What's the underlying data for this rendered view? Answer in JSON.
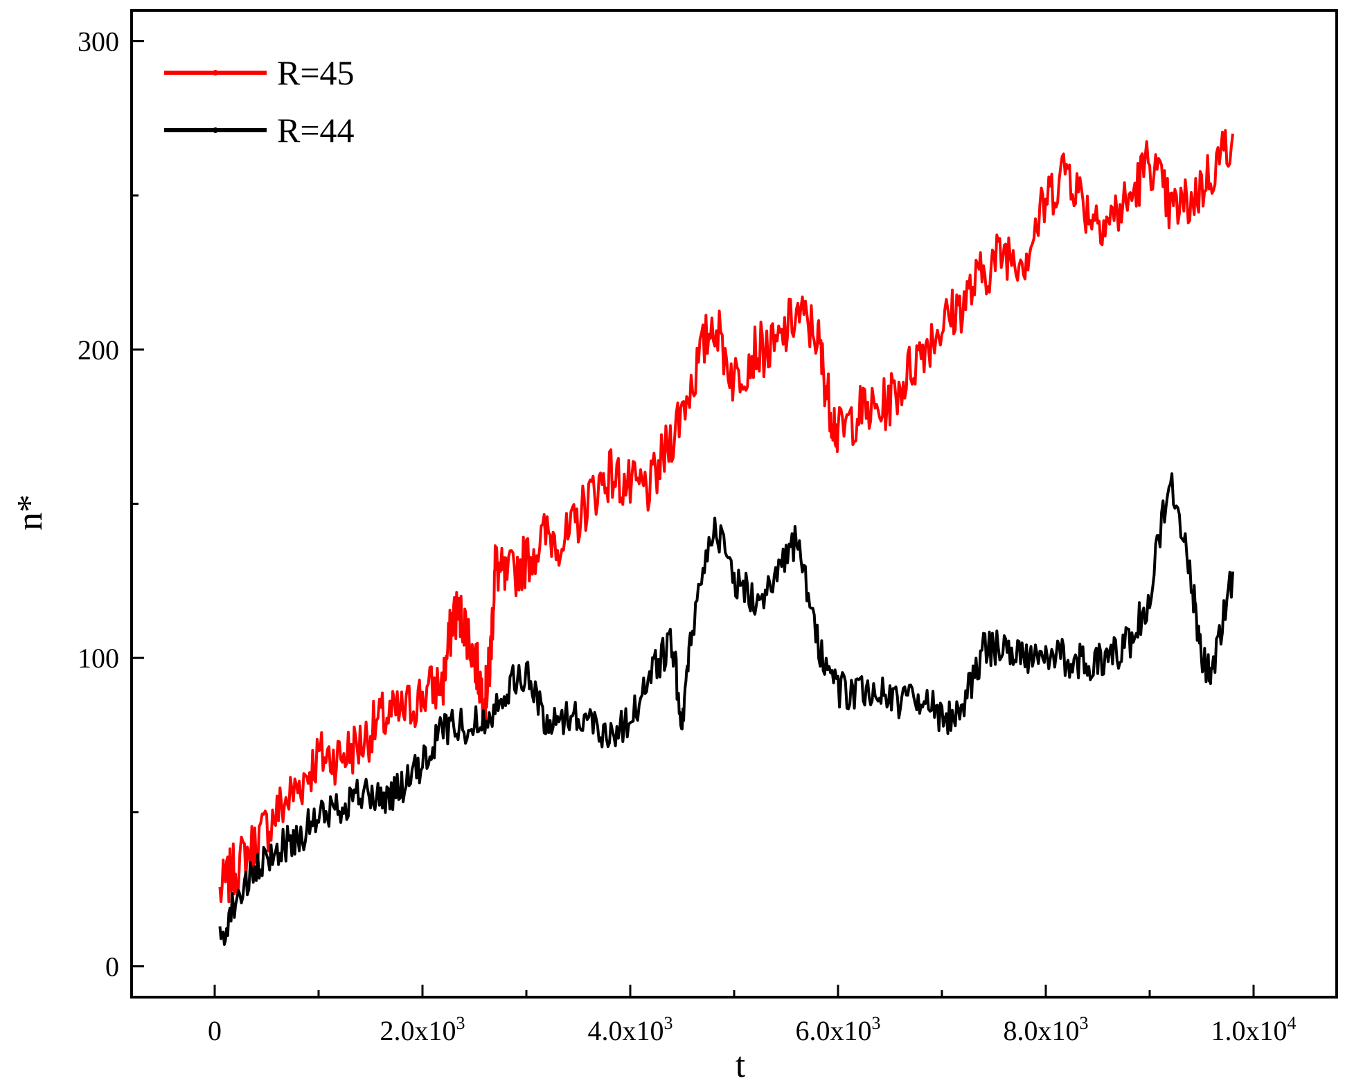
{
  "chart_data": {
    "type": "line",
    "xlabel": "t",
    "ylabel": "n*",
    "xlim": [
      -800,
      10800
    ],
    "ylim": [
      -10,
      310
    ],
    "x_ticks": [
      {
        "value": 0,
        "label": "0"
      },
      {
        "value": 2000,
        "label": "2.0x10",
        "exp": "3"
      },
      {
        "value": 4000,
        "label": "4.0x10",
        "exp": "3"
      },
      {
        "value": 6000,
        "label": "6.0x10",
        "exp": "3"
      },
      {
        "value": 8000,
        "label": "8.0x10",
        "exp": "3"
      },
      {
        "value": 10000,
        "label": "1.0x10",
        "exp": "4"
      }
    ],
    "x_minor_ticks": [
      1000,
      3000,
      5000,
      7000,
      9000
    ],
    "y_ticks": [
      {
        "value": 0,
        "label": "0"
      },
      {
        "value": 100,
        "label": "100"
      },
      {
        "value": 200,
        "label": "200"
      },
      {
        "value": 300,
        "label": "300"
      }
    ],
    "y_minor_ticks": [
      50,
      150,
      250
    ],
    "grid": false,
    "legend_position": "top-left",
    "series": [
      {
        "name": "R=45",
        "color": "#ff0000",
        "x": [
          50,
          200,
          400,
          600,
          800,
          1000,
          1200,
          1400,
          1600,
          1800,
          2000,
          2200,
          2300,
          2400,
          2500,
          2600,
          2650,
          2700,
          2800,
          3000,
          3200,
          3400,
          3600,
          3800,
          4000,
          4200,
          4400,
          4600,
          4800,
          5000,
          5200,
          5400,
          5600,
          5800,
          5900,
          6000,
          6200,
          6400,
          6600,
          6800,
          7000,
          7200,
          7400,
          7600,
          7800,
          8000,
          8200,
          8400,
          8600,
          8800,
          9000,
          9200,
          9400,
          9600,
          9800
        ],
        "y": [
          24,
          32,
          40,
          50,
          58,
          68,
          68,
          72,
          80,
          82,
          88,
          92,
          115,
          112,
          100,
          86,
          98,
          130,
          125,
          132,
          140,
          138,
          152,
          160,
          155,
          155,
          172,
          190,
          210,
          190,
          200,
          200,
          212,
          205,
          185,
          172,
          180,
          180,
          188,
          200,
          208,
          215,
          225,
          232,
          230,
          248,
          260,
          245,
          242,
          248,
          262,
          245,
          248,
          258,
          270
        ]
      },
      {
        "name": "R=44",
        "color": "#000000",
        "x": [
          50,
          200,
          400,
          600,
          800,
          1000,
          1200,
          1400,
          1600,
          1800,
          2000,
          2200,
          2400,
          2600,
          2800,
          3000,
          3200,
          3400,
          3600,
          3800,
          4000,
          4200,
          4400,
          4500,
          4600,
          4800,
          5000,
          5200,
          5400,
          5600,
          5800,
          6000,
          6200,
          6400,
          6600,
          6800,
          7000,
          7200,
          7400,
          7600,
          7800,
          8000,
          8200,
          8400,
          8600,
          8800,
          9000,
          9200,
          9400,
          9500,
          9600,
          9800
        ],
        "y": [
          8,
          22,
          30,
          38,
          42,
          48,
          52,
          56,
          54,
          58,
          65,
          78,
          78,
          80,
          90,
          95,
          78,
          82,
          80,
          75,
          80,
          95,
          105,
          80,
          110,
          145,
          125,
          120,
          125,
          138,
          105,
          90,
          88,
          90,
          85,
          88,
          80,
          85,
          102,
          105,
          100,
          102,
          100,
          98,
          100,
          105,
          120,
          160,
          125,
          100,
          95,
          128
        ]
      }
    ]
  }
}
